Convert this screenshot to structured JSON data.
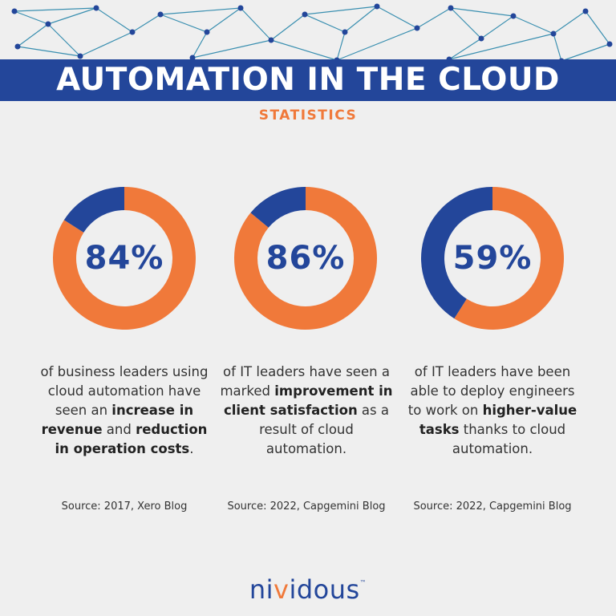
{
  "header": {
    "title": "AUTOMATION IN THE CLOUD",
    "subtitle": "STATISTICS"
  },
  "colors": {
    "orange": "#f0793a",
    "blue": "#23469a",
    "background": "#efefef",
    "network": "#3a8fb0"
  },
  "stats": [
    {
      "percent_label": "84%",
      "desc_parts": [
        "of business leaders using cloud automation have seen an ",
        "increase in revenue",
        " and ",
        "reduction in operation costs",
        "."
      ],
      "source": "Source: 2017, Xero Blog"
    },
    {
      "percent_label": "86%",
      "desc_parts": [
        "of IT leaders have seen a marked ",
        "improvement in client satisfaction",
        " as a result of cloud automation.",
        "",
        ""
      ],
      "source": "Source: 2022, Capgemini Blog"
    },
    {
      "percent_label": "59%",
      "desc_parts": [
        "of IT leaders have been able to deploy engineers to work on ",
        "higher-value tasks",
        " thanks to cloud automation.",
        "",
        ""
      ],
      "source": "Source: 2022, Capgemini Blog"
    }
  ],
  "chart_data": [
    {
      "type": "pie",
      "donut": true,
      "values": [
        84,
        16
      ],
      "colors": [
        "#f0793a",
        "#23469a"
      ]
    },
    {
      "type": "pie",
      "donut": true,
      "values": [
        86,
        14
      ],
      "colors": [
        "#f0793a",
        "#23469a"
      ]
    },
    {
      "type": "pie",
      "donut": true,
      "values": [
        59,
        41
      ],
      "colors": [
        "#f0793a",
        "#23469a"
      ]
    }
  ],
  "brand": {
    "logo_pre": "ni",
    "logo_v": "v",
    "logo_post": "idous",
    "trademark": "™"
  }
}
